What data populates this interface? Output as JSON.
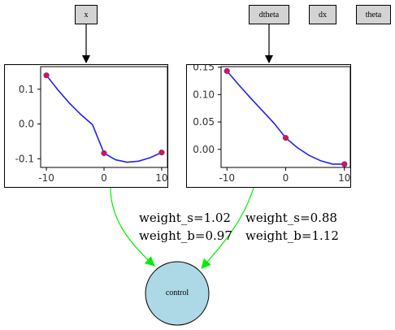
{
  "inputs": {
    "x_label": "x",
    "dtheta_label": "dtheta",
    "dx_label": "dx",
    "theta_label": "theta"
  },
  "edges": {
    "left_weight_s": "weight_s=1.02",
    "left_weight_b": "weight_b=0.97",
    "right_weight_s": "weight_s=0.88",
    "right_weight_b": "weight_b=1.12"
  },
  "output_node": {
    "label": "control"
  },
  "colors": {
    "curve": "#2222ee",
    "points": "#e8113a",
    "edge": "#00ee00",
    "output_fill": "#add8e6",
    "input_fill": "#d3d3d3"
  },
  "chart_data": [
    {
      "type": "line",
      "x_ticks": [
        "-10",
        "0",
        "10"
      ],
      "y_ticks": [
        "0.1",
        "0.0",
        "-0.1"
      ],
      "xlim": [
        -11,
        11
      ],
      "ylim": [
        -0.125,
        0.165
      ],
      "curve": {
        "x": [
          -10,
          -8,
          -6,
          -4,
          -2,
          0,
          2,
          4,
          6,
          8,
          10
        ],
        "y": [
          0.14,
          0.098,
          0.06,
          0.027,
          -0.002,
          -0.084,
          -0.103,
          -0.11,
          -0.107,
          -0.097,
          -0.082
        ]
      },
      "points": {
        "x": [
          -10,
          0,
          10
        ],
        "y": [
          0.14,
          -0.084,
          -0.082
        ]
      }
    },
    {
      "type": "line",
      "x_ticks": [
        "-10",
        "0",
        "10"
      ],
      "y_ticks": [
        "0.15",
        "0.10",
        "0.05",
        "0.00"
      ],
      "xlim": [
        -11,
        11
      ],
      "ylim": [
        -0.033,
        0.151
      ],
      "curve": {
        "x": [
          -10,
          -8,
          -6,
          -4,
          -2,
          0,
          2,
          4,
          6,
          8,
          10
        ],
        "y": [
          0.143,
          0.118,
          0.094,
          0.071,
          0.048,
          0.021,
          0.003,
          -0.011,
          -0.021,
          -0.027,
          -0.027
        ]
      },
      "points": {
        "x": [
          -10,
          0,
          10
        ],
        "y": [
          0.143,
          0.021,
          -0.027
        ]
      }
    }
  ]
}
